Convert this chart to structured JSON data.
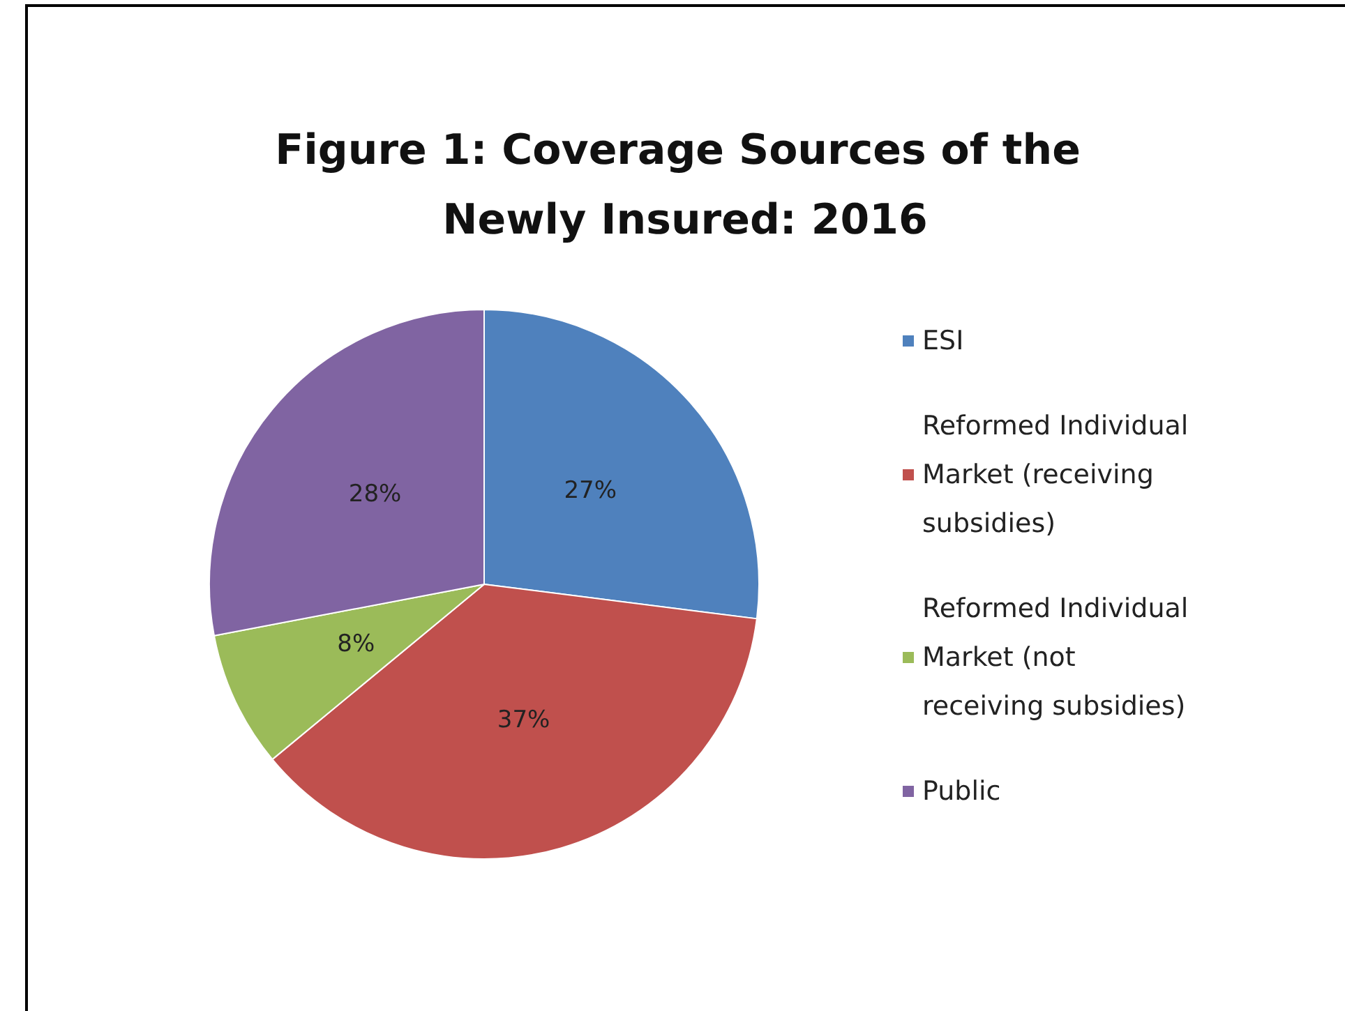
{
  "chart_data": {
    "type": "pie",
    "title": "Figure 1: Coverage Sources of the Newly Insured: 2016",
    "categories": [
      "ESI",
      "Reformed Individual Market (receiving subsidies)",
      "Reformed Individual Market (not receiving subsidies)",
      "Public"
    ],
    "values": [
      27,
      37,
      8,
      28
    ],
    "value_labels": [
      "27%",
      "37%",
      "8%",
      "28%"
    ],
    "colors": [
      "#4f81bd",
      "#c0504d",
      "#9bbb59",
      "#8064a2"
    ],
    "legend": "right"
  }
}
